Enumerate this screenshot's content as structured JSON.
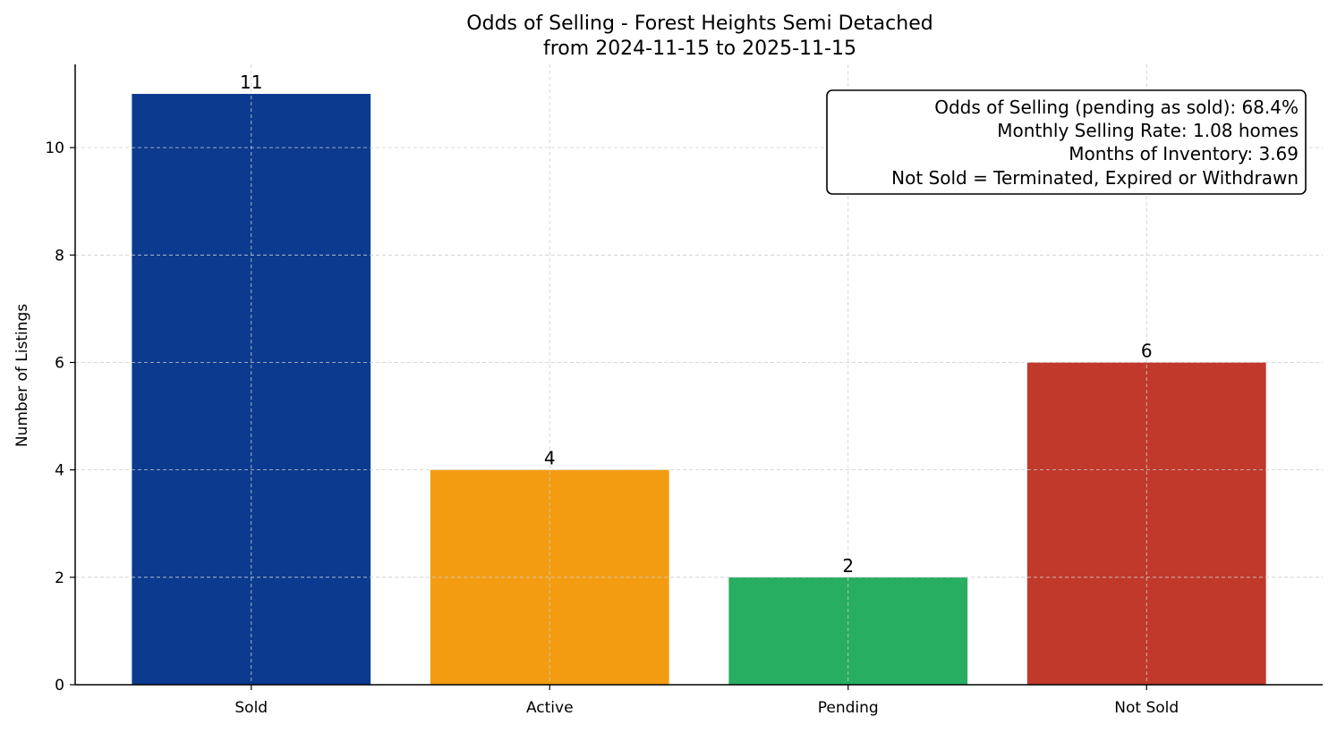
{
  "chart_data": {
    "type": "bar",
    "title": "Odds of Selling - Forest Heights Semi Detached",
    "subtitle": "from 2024-11-15 to 2025-11-15",
    "xlabel": "",
    "ylabel": "Number of Listings",
    "categories": [
      "Sold",
      "Active",
      "Pending",
      "Not Sold"
    ],
    "values": [
      11,
      4,
      2,
      6
    ],
    "data_labels": [
      "11",
      "4",
      "2",
      "6"
    ],
    "colors": [
      "#0b3a8f",
      "#f39c12",
      "#27ae60",
      "#c0392b"
    ],
    "ylim": [
      0,
      11.55
    ],
    "yticks": [
      0,
      2,
      4,
      6,
      8,
      10
    ],
    "grid": true,
    "annotation": {
      "placement": "top-right",
      "lines": [
        "Odds of Selling (pending as sold): 68.4%",
        "Monthly Selling Rate: 1.08 homes",
        "Months of Inventory: 3.69",
        "Not Sold = Terminated, Expired or Withdrawn"
      ]
    }
  }
}
